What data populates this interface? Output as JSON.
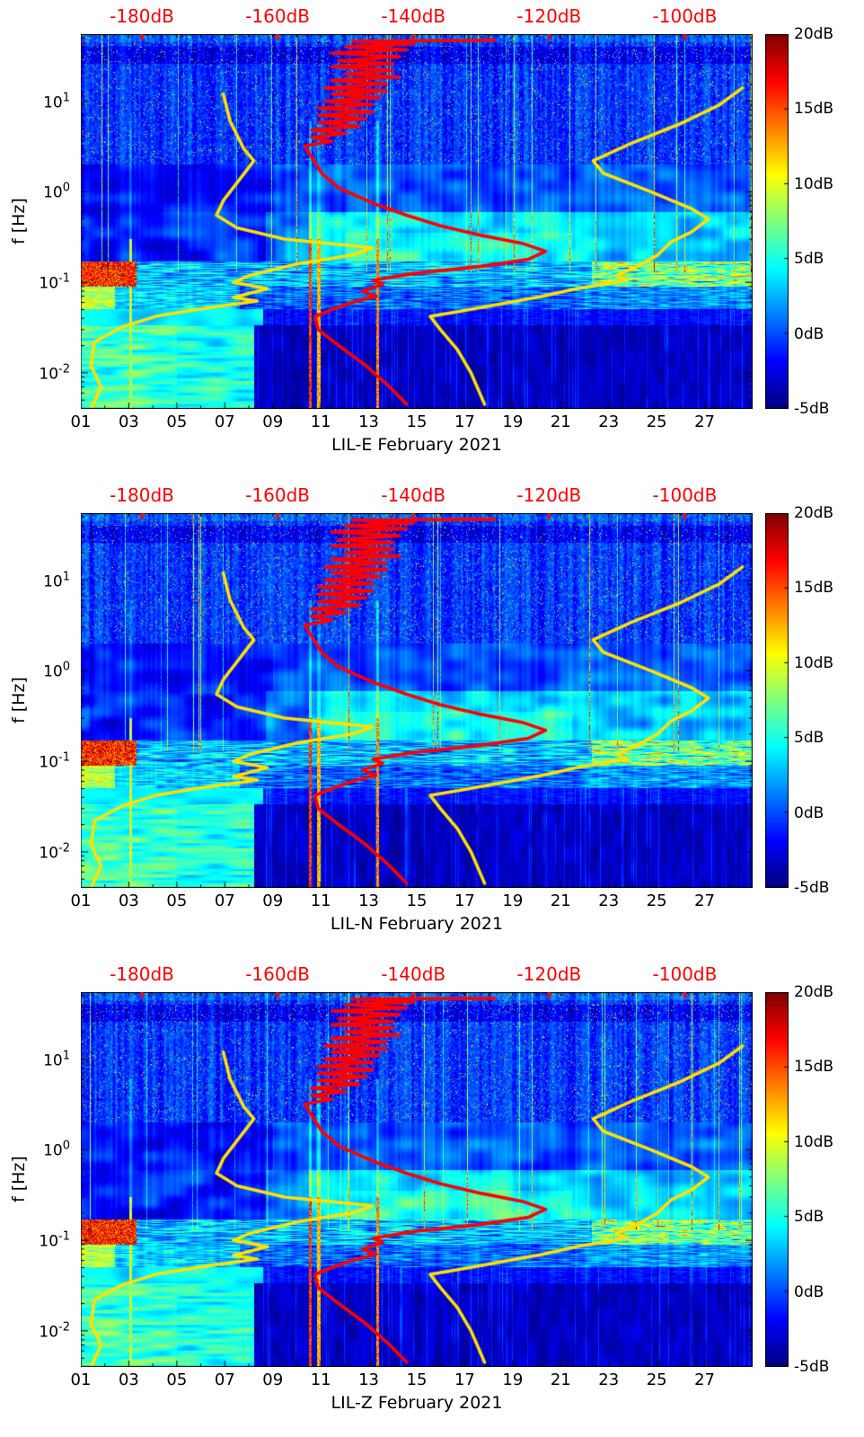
{
  "chart_data": {
    "type": "heatmap",
    "subtype": "spectrogram",
    "description": "Three stacked seismic noise spectrograms (channels LIL-E, LIL-N, LIL-Z) for February 2021. Background heatmap shows relative power in dB (jet colormap, -5dB to 20dB). Overlaid yellow low/high noise model curves and a red station power spectrum curve are plotted against the red top dB axis (-180dB to -100dB) versus frequency.",
    "panels": [
      {
        "channel": "LIL-E",
        "label": "LIL-E February 2021"
      },
      {
        "channel": "LIL-N",
        "label": "LIL-N February 2021"
      },
      {
        "channel": "LIL-Z",
        "label": "LIL-Z February 2021"
      }
    ],
    "x_axis": {
      "month": "February 2021",
      "tick_labels": [
        "01",
        "03",
        "05",
        "07",
        "09",
        "11",
        "13",
        "15",
        "17",
        "19",
        "21",
        "23",
        "25",
        "27"
      ],
      "tick_days": [
        1,
        3,
        5,
        7,
        9,
        11,
        13,
        15,
        17,
        19,
        21,
        23,
        25,
        27
      ],
      "range_days": [
        1,
        29
      ]
    },
    "y_axis": {
      "label": "f [Hz]",
      "scale": "log",
      "tick_labels": [
        "10^1",
        "10^0",
        "10^-1",
        "10^-2"
      ],
      "tick_values_hz": [
        10,
        1,
        0.1,
        0.01
      ],
      "range_hz": [
        0.004,
        55
      ]
    },
    "top_axis": {
      "unit": "dB",
      "color": "#ff0000",
      "tick_labels": [
        "-180dB",
        "-160dB",
        "-140dB",
        "-120dB",
        "-100dB"
      ],
      "tick_values_db": [
        -180,
        -160,
        -140,
        -120,
        -100
      ],
      "range_db": [
        -189,
        -90
      ]
    },
    "colorbar": {
      "colormap": "jet",
      "tick_labels": [
        "20dB",
        "15dB",
        "10dB",
        "5dB",
        "0dB",
        "-5dB"
      ],
      "tick_values_db": [
        20,
        15,
        10,
        5,
        0,
        -5
      ],
      "range_db": [
        -5,
        20
      ]
    },
    "overlays": {
      "low_noise_model": {
        "color": "#ffe100",
        "points_db_hz": [
          [
            -168,
            12
          ],
          [
            -167,
            6
          ],
          [
            -165,
            3
          ],
          [
            -163.5,
            2.2
          ],
          [
            -165.5,
            1.4
          ],
          [
            -168,
            0.8
          ],
          [
            -169,
            0.55
          ],
          [
            -166,
            0.4
          ],
          [
            -159,
            0.3
          ],
          [
            -146,
            0.24
          ],
          [
            -149,
            0.2
          ],
          [
            -157,
            0.16
          ],
          [
            -164,
            0.12
          ],
          [
            -166.5,
            0.1
          ],
          [
            -161.5,
            0.085
          ],
          [
            -166.5,
            0.068
          ],
          [
            -163,
            0.062
          ],
          [
            -172,
            0.05
          ],
          [
            -178,
            0.042
          ],
          [
            -183,
            0.032
          ],
          [
            -187,
            0.022
          ],
          [
            -187.5,
            0.012
          ],
          [
            -186,
            0.007
          ],
          [
            -187.5,
            0.004
          ]
        ]
      },
      "high_noise_model": {
        "color": "#ffe100",
        "points_db_hz": [
          [
            -91.5,
            14
          ],
          [
            -95,
            9
          ],
          [
            -101,
            5.5
          ],
          [
            -108,
            3.4
          ],
          [
            -113.5,
            2.2
          ],
          [
            -112,
            1.6
          ],
          [
            -105,
            1.0
          ],
          [
            -99,
            0.65
          ],
          [
            -96.5,
            0.5
          ],
          [
            -99,
            0.36
          ],
          [
            -102,
            0.28
          ],
          [
            -104,
            0.2
          ],
          [
            -107,
            0.15
          ],
          [
            -110,
            0.12
          ],
          [
            -108.5,
            0.105
          ],
          [
            -116,
            0.085
          ],
          [
            -121,
            0.07
          ],
          [
            -127,
            0.058
          ],
          [
            -133,
            0.048
          ],
          [
            -137.5,
            0.042
          ],
          [
            -136,
            0.03
          ],
          [
            -133.5,
            0.018
          ],
          [
            -131.5,
            0.01
          ],
          [
            -129.5,
            0.0045
          ]
        ]
      },
      "station_spectrum": {
        "color": "#ff0000",
        "points_db_hz": [
          [
            -128,
            47
          ],
          [
            -149,
            46
          ],
          [
            -140,
            43
          ],
          [
            -150,
            40
          ],
          [
            -141,
            37
          ],
          [
            -152,
            34
          ],
          [
            -142,
            31
          ],
          [
            -151,
            28
          ],
          [
            -143,
            26
          ],
          [
            -152,
            24
          ],
          [
            -143,
            22
          ],
          [
            -150,
            20
          ],
          [
            -142,
            18.5
          ],
          [
            -152,
            17
          ],
          [
            -144,
            15.5
          ],
          [
            -153,
            14
          ],
          [
            -144,
            13
          ],
          [
            -152,
            12
          ],
          [
            -145,
            11
          ],
          [
            -153,
            10
          ],
          [
            -146,
            9.2
          ],
          [
            -154,
            8.4
          ],
          [
            -146,
            7.6
          ],
          [
            -154,
            7
          ],
          [
            -147,
            6.4
          ],
          [
            -154,
            5.8
          ],
          [
            -148,
            5.3
          ],
          [
            -155,
            4.8
          ],
          [
            -150,
            4.4
          ],
          [
            -155,
            4
          ],
          [
            -152,
            3.6
          ],
          [
            -156,
            3.2
          ],
          [
            -155,
            2.4
          ],
          [
            -153.5,
            1.6
          ],
          [
            -151,
            1.1
          ],
          [
            -146,
            0.75
          ],
          [
            -141,
            0.55
          ],
          [
            -136,
            0.42
          ],
          [
            -130,
            0.33
          ],
          [
            -124,
            0.27
          ],
          [
            -120.5,
            0.22
          ],
          [
            -123,
            0.18
          ],
          [
            -130,
            0.15
          ],
          [
            -140,
            0.125
          ],
          [
            -146,
            0.105
          ],
          [
            -144.5,
            0.095
          ],
          [
            -147.5,
            0.08
          ],
          [
            -145.5,
            0.07
          ],
          [
            -149,
            0.06
          ],
          [
            -152,
            0.05
          ],
          [
            -154.5,
            0.042
          ],
          [
            -154,
            0.03
          ],
          [
            -151,
            0.02
          ],
          [
            -147,
            0.012
          ],
          [
            -143.5,
            0.007
          ],
          [
            -141,
            0.0045
          ]
        ]
      }
    },
    "heatmap_regions": [
      {
        "freq_band_hz": [
          2,
          55
        ],
        "approx_db": [
          -3,
          3
        ],
        "description": "blue background, dense thin vertical streaks and speckles reaching 10-18 dB, darker band near 26-40 Hz"
      },
      {
        "freq_band_hz": [
          0.17,
          0.6
        ],
        "approx_db": [
          -3,
          8
        ],
        "description": "cyan microseism cloud; darker days 1-9, brighter days 11-28"
      },
      {
        "freq_band_hz": [
          0.09,
          0.17
        ],
        "approx_db": [
          0,
          20
        ],
        "description": "striped band; red/yellow blocks days 1-3 and days 23-28"
      },
      {
        "freq_band_hz": [
          0.004,
          0.05
        ],
        "approx_db": [
          -4,
          8
        ],
        "description": "days 1-8 cyan/yellow patches; days 9-28 dark navy with faint lighter columns"
      }
    ],
    "event_columns_days": [
      10.55,
      10.9,
      13.35,
      3.05
    ]
  }
}
